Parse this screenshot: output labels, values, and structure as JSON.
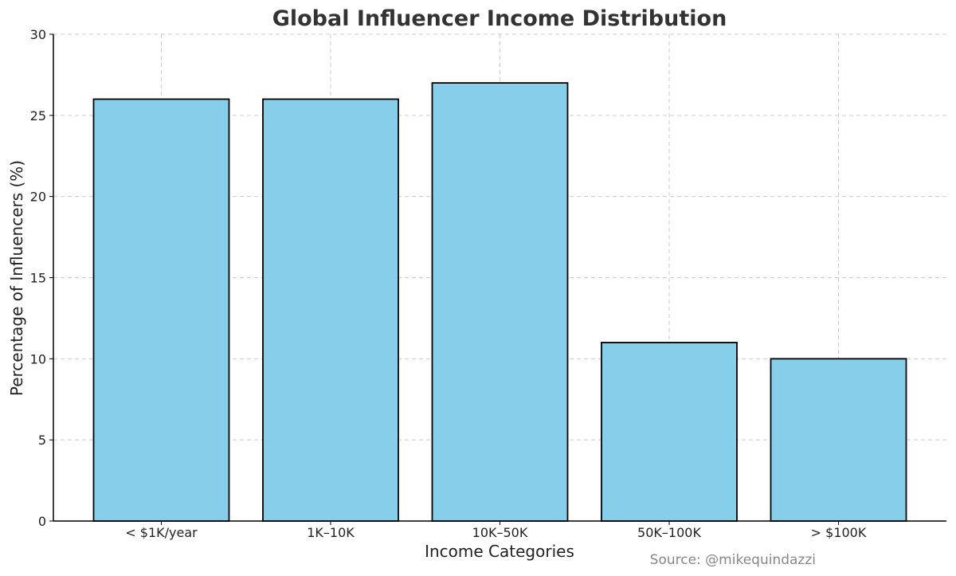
{
  "chart_data": {
    "type": "bar",
    "title": "Global Influencer Income Distribution",
    "xlabel": "Income Categories",
    "ylabel": "Percentage of Influencers (%)",
    "categories": [
      "< $1K/year",
      "1K–10K",
      "10K–50K",
      "50K–100K",
      "> $100K"
    ],
    "values": [
      26,
      26,
      27,
      11,
      10
    ],
    "ylim": [
      0,
      30
    ],
    "yticks": [
      0,
      5,
      10,
      15,
      20,
      25,
      30
    ],
    "grid": true,
    "bar_color": "#87CEEB",
    "bar_edge_color": "#000000",
    "source": "Source: @mikequindazzi"
  }
}
